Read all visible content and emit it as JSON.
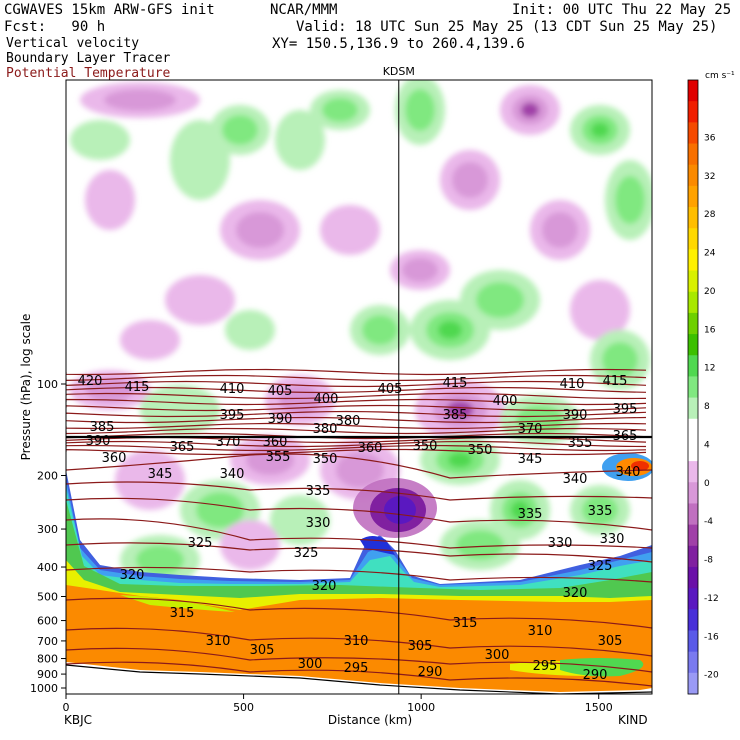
{
  "header": {
    "line1_left": "CGWAVES 15km ARW-GFS init",
    "line1_mid": "NCAR/MMM",
    "line1_right": "Init: 00 UTC Thu 22 May 25",
    "line2_left": "Fcst:   90 h",
    "line2_right": "Valid: 18 UTC Sun 25 May 25 (13 CDT Sun 25 May 25)",
    "line3_left": "Vertical velocity",
    "line3_right": "XY= 150.5,136.9 to 260.4,139.6",
    "line4_left": "Boundary Layer Tracer",
    "line5_left": "Potential Temperature",
    "theta_color": "#8b1a1a"
  },
  "chart_data": {
    "type": "heatmap",
    "title": "",
    "station_marker": "KDSM",
    "station_marker_km": 937,
    "xlabel": "Distance (km)",
    "ylabel": "Pressure (hPa), log scale",
    "xlim": [
      0,
      1650
    ],
    "x_ticks": [
      0,
      500,
      1000,
      1500
    ],
    "y_ticks": [
      100,
      200,
      300,
      400,
      500,
      600,
      700,
      800,
      900,
      1000
    ],
    "endpoints": {
      "left": "KBJC",
      "right": "KIND"
    },
    "colorbar": {
      "unit": "cm s⁻¹",
      "labels": [
        36,
        32,
        28,
        24,
        20,
        16,
        12,
        8,
        4,
        0,
        -4,
        -8,
        -12,
        -16,
        -20
      ],
      "colors": [
        "#e00000",
        "#f01e00",
        "#f54a00",
        "#f87000",
        "#fb8a00",
        "#ffa200",
        "#ffbe00",
        "#ffd800",
        "#fff000",
        "#d8f000",
        "#a8e800",
        "#6ed000",
        "#3cc000",
        "#50d850",
        "#80e880",
        "#b8f0b8",
        "#ffffff",
        "#ffffff",
        "#eab8ea",
        "#d898d8",
        "#c070c0",
        "#a040a8",
        "#8020a0",
        "#6a10a8",
        "#5a18c0",
        "#4830d8",
        "#5a5ae8",
        "#7a7aef",
        "#9a9af5"
      ]
    },
    "potential_temperature_labels": [
      420,
      415,
      410,
      405,
      400,
      395,
      390,
      385,
      380,
      370,
      365,
      360,
      355,
      350,
      345,
      340,
      335,
      330,
      325,
      320,
      315,
      310,
      305,
      300,
      295,
      290
    ]
  }
}
